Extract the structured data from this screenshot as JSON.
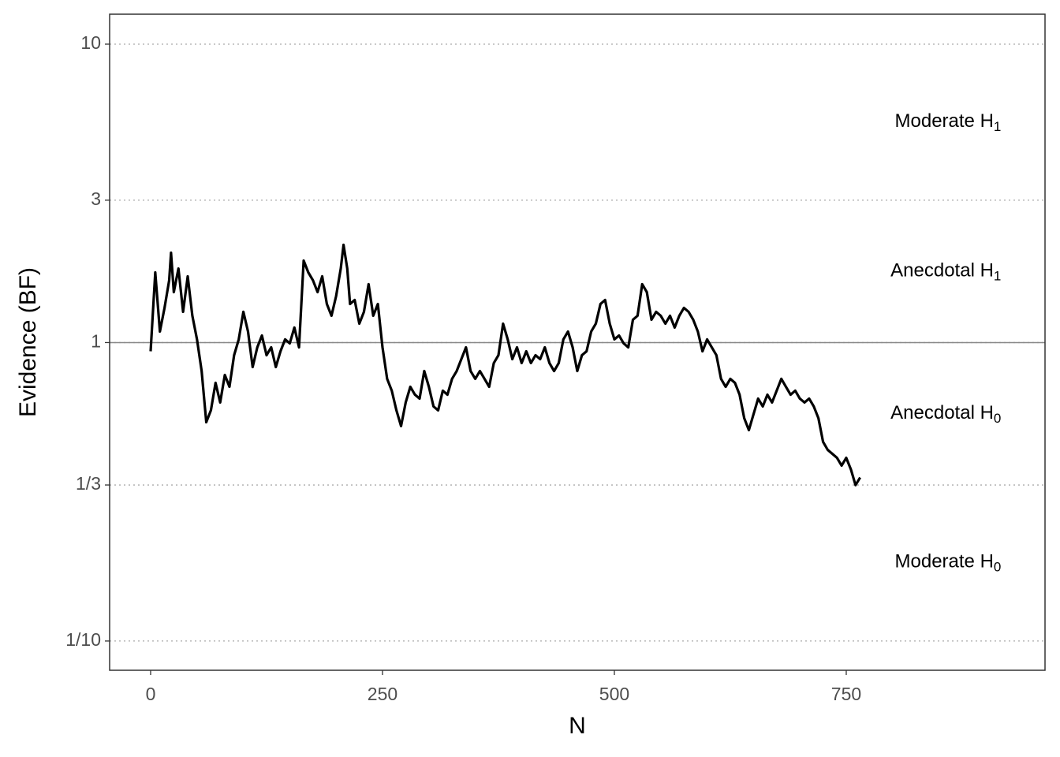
{
  "chart_data": {
    "type": "line",
    "xlabel": "N",
    "ylabel": "Evidence (BF)",
    "color": "#000000",
    "log_y": true,
    "grid": true,
    "hline": 1,
    "xlim": [
      -44.2,
      964.3
    ],
    "xticks": [
      0,
      250,
      500,
      750
    ],
    "ylim": [
      0.0798,
      12.6
    ],
    "yticks": [
      10,
      3,
      1,
      {
        "value": 0.3333,
        "label": "1/3"
      },
      {
        "value": 0.1,
        "label": "1/10"
      }
    ],
    "annotations": [
      {
        "text": "Moderate H",
        "sub": "1",
        "x": 917,
        "y": 5.47
      },
      {
        "text": "Anecdotal H",
        "sub": "1",
        "x": 917,
        "y": 1.73
      },
      {
        "text": "Anecdotal H",
        "sub": "0",
        "x": 917,
        "y": 0.577
      },
      {
        "text": "Moderate H",
        "sub": "0",
        "x": 917,
        "y": 0.183
      }
    ],
    "x": [
      0,
      5,
      10,
      15,
      20,
      22,
      25,
      30,
      35,
      40,
      45,
      50,
      55,
      60,
      65,
      70,
      75,
      80,
      85,
      90,
      95,
      100,
      105,
      110,
      115,
      120,
      125,
      130,
      135,
      140,
      145,
      150,
      155,
      160,
      165,
      170,
      175,
      180,
      185,
      190,
      195,
      200,
      205,
      208,
      212,
      215,
      220,
      225,
      230,
      235,
      240,
      245,
      250,
      255,
      260,
      265,
      270,
      275,
      280,
      285,
      290,
      295,
      300,
      305,
      310,
      315,
      320,
      325,
      330,
      335,
      340,
      345,
      350,
      355,
      360,
      365,
      370,
      375,
      380,
      385,
      390,
      395,
      400,
      405,
      410,
      415,
      420,
      425,
      430,
      435,
      440,
      445,
      450,
      455,
      460,
      465,
      470,
      475,
      480,
      485,
      490,
      495,
      500,
      505,
      510,
      515,
      520,
      525,
      530,
      535,
      540,
      545,
      550,
      555,
      560,
      565,
      570,
      575,
      580,
      585,
      590,
      595,
      600,
      605,
      610,
      615,
      620,
      625,
      630,
      635,
      640,
      645,
      650,
      655,
      660,
      665,
      670,
      675,
      680,
      685,
      690,
      695,
      700,
      705,
      710,
      715,
      720,
      725,
      730,
      735,
      740,
      745,
      750,
      755,
      760,
      765
    ],
    "values": [
      0.935,
      1.718,
      1.089,
      1.307,
      1.617,
      2.001,
      1.476,
      1.771,
      1.268,
      1.667,
      1.23,
      1.025,
      0.803,
      0.541,
      0.593,
      0.733,
      0.63,
      0.779,
      0.711,
      0.907,
      1.025,
      1.268,
      1.089,
      0.828,
      0.964,
      1.056,
      0.907,
      0.964,
      0.828,
      0.935,
      1.025,
      0.994,
      1.123,
      0.964,
      1.882,
      1.718,
      1.617,
      1.476,
      1.667,
      1.347,
      1.23,
      1.432,
      1.771,
      2.126,
      1.771,
      1.347,
      1.389,
      1.157,
      1.268,
      1.569,
      1.23,
      1.347,
      0.964,
      0.756,
      0.69,
      0.593,
      0.525,
      0.63,
      0.711,
      0.669,
      0.649,
      0.803,
      0.711,
      0.611,
      0.593,
      0.69,
      0.669,
      0.756,
      0.803,
      0.88,
      0.964,
      0.803,
      0.756,
      0.803,
      0.756,
      0.711,
      0.854,
      0.907,
      1.157,
      1.025,
      0.88,
      0.964,
      0.854,
      0.935,
      0.854,
      0.907,
      0.88,
      0.964,
      0.854,
      0.803,
      0.854,
      1.025,
      1.089,
      0.964,
      0.803,
      0.907,
      0.935,
      1.089,
      1.157,
      1.347,
      1.389,
      1.157,
      1.025,
      1.056,
      0.994,
      0.964,
      1.193,
      1.23,
      1.569,
      1.476,
      1.193,
      1.268,
      1.23,
      1.157,
      1.23,
      1.123,
      1.23,
      1.307,
      1.268,
      1.193,
      1.089,
      0.935,
      1.025,
      0.964,
      0.907,
      0.756,
      0.711,
      0.756,
      0.733,
      0.669,
      0.558,
      0.509,
      0.575,
      0.649,
      0.611,
      0.669,
      0.63,
      0.69,
      0.756,
      0.711,
      0.669,
      0.69,
      0.649,
      0.63,
      0.649,
      0.611,
      0.558,
      0.465,
      0.437,
      0.424,
      0.411,
      0.387,
      0.411,
      0.376,
      0.333,
      0.353
    ]
  }
}
